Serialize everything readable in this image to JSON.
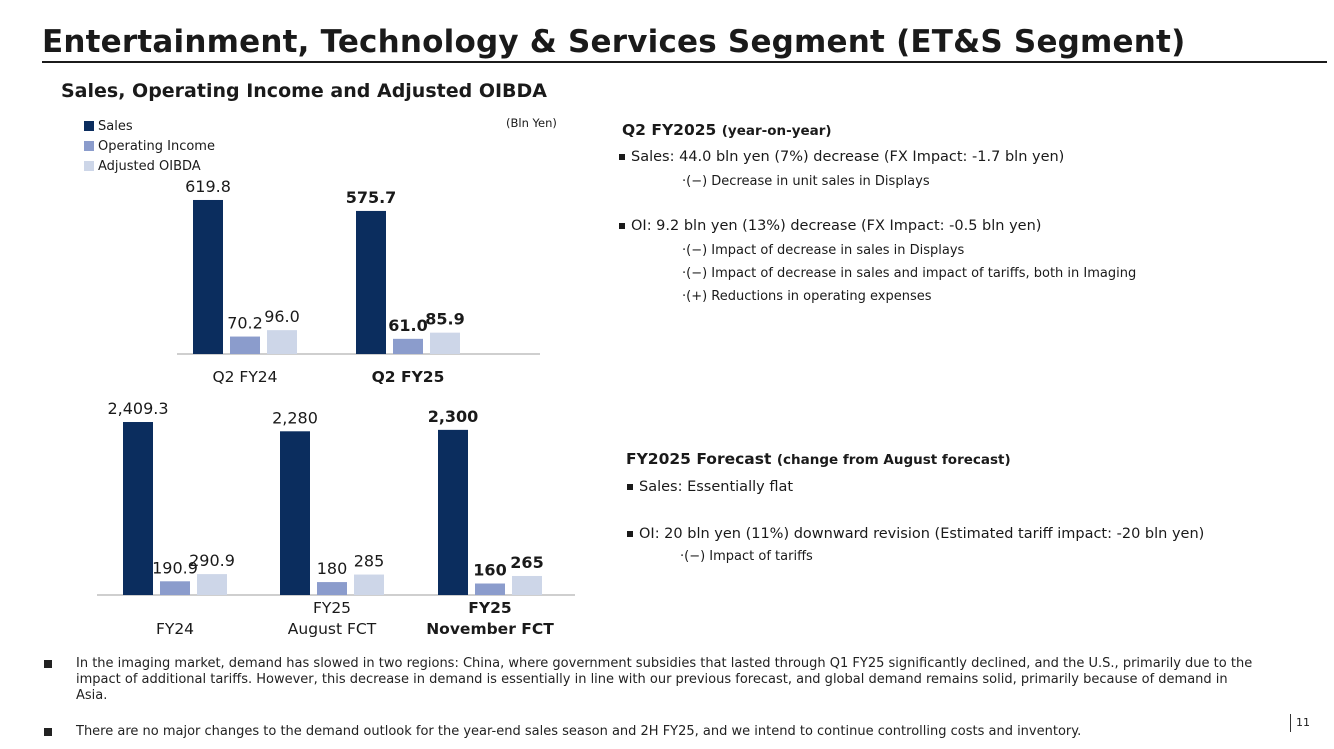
{
  "title": "Entertainment, Technology & Services Segment (ET&S Segment)",
  "chart_heading": "Sales, Operating Income and Adjusted OIBDA",
  "unit": "(Bln Yen)",
  "legend": [
    {
      "label": "Sales",
      "color": "#0b2d5e"
    },
    {
      "label": "Operating Income",
      "color": "#8b9ccc"
    },
    {
      "label": "Adjusted OIBDA",
      "color": "#cdd6e8"
    }
  ],
  "chart_data": [
    {
      "type": "bar",
      "categories": [
        "Q2 FY24",
        "Q2 FY25"
      ],
      "category_bold": [
        false,
        true
      ],
      "series": [
        {
          "name": "Sales",
          "values": [
            619.8,
            575.7
          ],
          "labels": [
            "619.8",
            "575.7"
          ],
          "color": "#0b2d5e"
        },
        {
          "name": "Operating Income",
          "values": [
            70.2,
            61.0
          ],
          "labels": [
            "70.2",
            "61.0"
          ],
          "color": "#8b9ccc"
        },
        {
          "name": "Adjusted OIBDA",
          "values": [
            96.0,
            85.9
          ],
          "labels": [
            "96.0",
            "85.9"
          ],
          "color": "#cdd6e8"
        }
      ]
    },
    {
      "type": "bar",
      "categories": [
        "FY24",
        "FY25\nAugust FCT",
        "FY25\nNovember FCT"
      ],
      "category_bold": [
        false,
        false,
        true
      ],
      "series": [
        {
          "name": "Sales",
          "values": [
            2409.3,
            2280,
            2300
          ],
          "labels": [
            "2,409.3",
            "2,280",
            "2,300"
          ],
          "color": "#0b2d5e"
        },
        {
          "name": "Operating Income",
          "values": [
            190.9,
            180,
            160
          ],
          "labels": [
            "190.9",
            "180",
            "160"
          ],
          "color": "#8b9ccc"
        },
        {
          "name": "Adjusted OIBDA",
          "values": [
            290.9,
            285,
            265
          ],
          "labels": [
            "290.9",
            "285",
            "265"
          ],
          "color": "#cdd6e8"
        }
      ]
    }
  ],
  "q2": {
    "title": "Q2 FY2025",
    "title_note": "(year-on-year)",
    "sales": "Sales: 44.0 bln yen (7%) decrease (FX Impact: -1.7 bln yen)",
    "sales_sub": [
      "·(−) Decrease in unit sales in Displays"
    ],
    "oi": "OI: 9.2 bln yen (13%) decrease (FX Impact: -0.5 bln yen)",
    "oi_sub": [
      "·(−) Impact of decrease in sales in Displays",
      "·(−) Impact of decrease in sales and impact of tariffs, both in Imaging",
      "·(+) Reductions in operating expenses"
    ]
  },
  "fcst": {
    "title": "FY2025 Forecast",
    "title_note": "(change from August forecast)",
    "sales": "Sales: Essentially flat",
    "oi": "OI: 20 bln yen (11%) downward revision (Estimated tariff impact: -20 bln yen)",
    "oi_sub": [
      "·(−) Impact of tariffs"
    ]
  },
  "footer": [
    "In the imaging market, demand has slowed in two regions: China, where government subsidies that lasted through Q1 FY25 significantly declined, and the U.S., primarily due to the impact of additional tariffs. However, this decrease in demand is essentially in line with our previous forecast, and global demand remains solid, primarily because of demand in Asia.",
    "There are no major changes to the demand outlook for the year-end sales season and 2H FY25, and we intend to continue controlling costs and inventory."
  ],
  "page_number": "11"
}
